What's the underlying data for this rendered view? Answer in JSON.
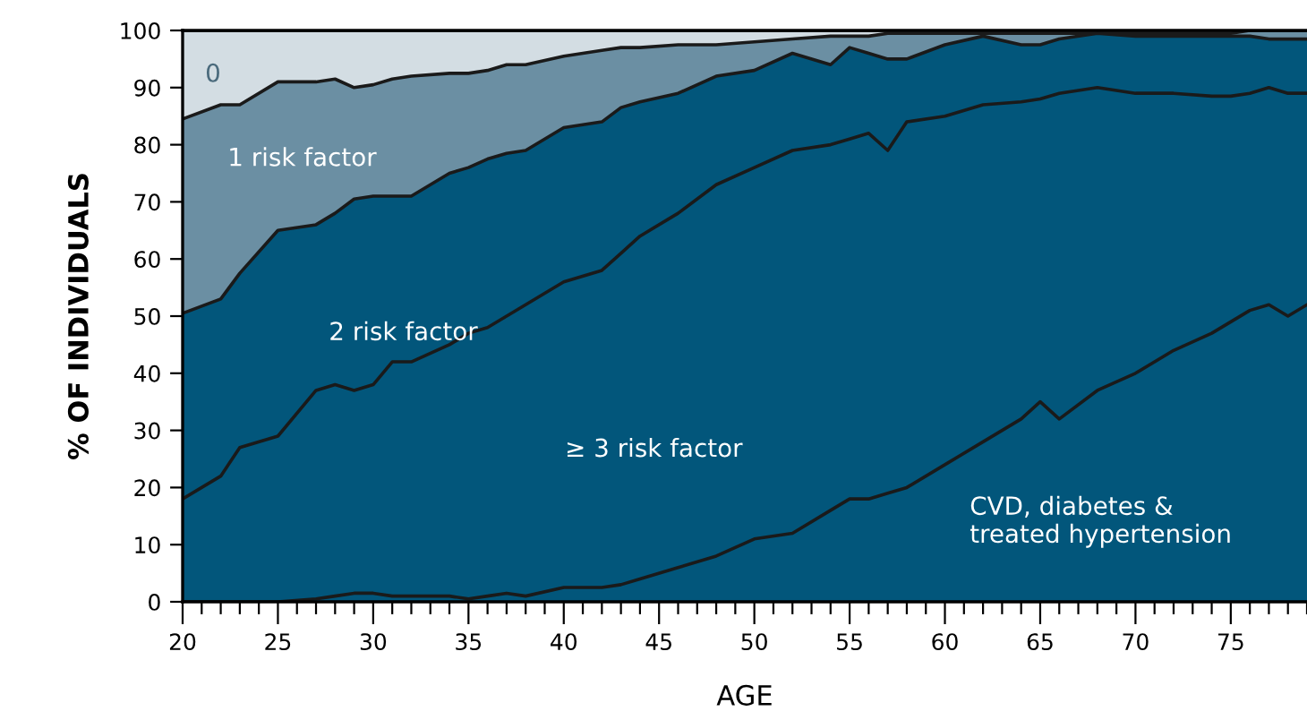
{
  "chart_data": {
    "type": "area",
    "stacked": true,
    "xlabel": "AGE",
    "ylabel": "% OF INDIVIDUALS",
    "x": [
      20,
      22,
      23,
      25,
      27,
      28,
      29,
      30,
      31,
      32,
      34,
      35,
      36,
      37,
      38,
      40,
      42,
      43,
      44,
      46,
      48,
      50,
      52,
      54,
      55,
      56,
      57,
      58,
      60,
      62,
      64,
      65,
      66,
      68,
      70,
      72,
      74,
      75,
      76,
      77,
      78,
      79
    ],
    "series": [
      {
        "name": "CVD, diabetes &\ntreated hypertension",
        "color": "#02567b",
        "values": [
          0,
          0,
          0,
          0,
          0.5,
          1,
          1.5,
          1.5,
          1,
          1,
          1,
          0.5,
          1,
          1.5,
          1,
          2.5,
          2.5,
          3,
          4,
          6,
          8,
          11,
          12,
          16,
          18,
          18,
          19,
          20,
          24,
          28,
          32,
          35,
          32,
          37,
          40,
          44,
          47,
          49,
          51,
          52,
          50,
          52
        ]
      },
      {
        "name": "≥ 3 risk factor",
        "color": "#02567b",
        "values": [
          18,
          22,
          27,
          29,
          36.5,
          37,
          35.5,
          36.5,
          41,
          41,
          44,
          46.5,
          47,
          48.5,
          51,
          53.5,
          55.5,
          58,
          60,
          62,
          65,
          65,
          67,
          64,
          63,
          64,
          60,
          64,
          61,
          59,
          55.5,
          53,
          57,
          53,
          49,
          45,
          41.5,
          39.5,
          38,
          38,
          39,
          37
        ]
      },
      {
        "name": "2 risk factor",
        "color": "#02567b",
        "values": [
          32.5,
          31,
          30.5,
          36,
          29,
          30,
          33.5,
          33,
          29,
          29,
          30,
          29,
          29.5,
          28.5,
          27,
          27,
          26,
          25.5,
          23.5,
          21,
          19,
          17,
          17,
          14,
          16,
          14,
          16,
          11,
          12.5,
          12,
          10,
          9.5,
          9.5,
          9.5,
          10,
          10,
          10.5,
          10.5,
          10,
          8.5,
          9.5,
          9.5
        ]
      },
      {
        "name": "1 risk factor",
        "color": "#6b8fa3",
        "values": [
          34,
          34,
          29.5,
          26,
          25,
          23.5,
          19.5,
          19.5,
          20.5,
          21,
          17.5,
          16.5,
          15.5,
          15.5,
          15,
          12.5,
          12.5,
          10.5,
          9.5,
          8.5,
          5.5,
          5,
          2.5,
          5,
          2,
          3,
          4.5,
          4.5,
          2,
          0.5,
          2,
          2,
          1,
          0,
          0.5,
          0.5,
          0.5,
          0.5,
          1,
          1.5,
          1.5,
          1.5
        ]
      },
      {
        "name": "0",
        "color": "#d3dde3",
        "values": [
          15.5,
          13,
          13,
          9,
          9,
          8.5,
          10,
          9.5,
          8.5,
          8,
          7.5,
          7.5,
          7,
          6,
          6,
          4.5,
          3.5,
          3,
          3,
          2.5,
          2.5,
          2,
          1.5,
          1,
          1,
          1,
          0.5,
          0.5,
          0.5,
          0.5,
          0.5,
          0.5,
          0.5,
          0.5,
          0.5,
          0.5,
          0.5,
          0.5,
          0,
          0,
          0,
          0
        ]
      }
    ],
    "xlim": [
      20,
      79
    ],
    "xticks": [
      20,
      25,
      30,
      35,
      40,
      45,
      50,
      55,
      60,
      65,
      70,
      75
    ],
    "ylim": [
      0,
      100
    ],
    "yticks": [
      0,
      10,
      20,
      30,
      40,
      50,
      60,
      70,
      80,
      90,
      100
    ],
    "grid": false,
    "legend": false
  }
}
